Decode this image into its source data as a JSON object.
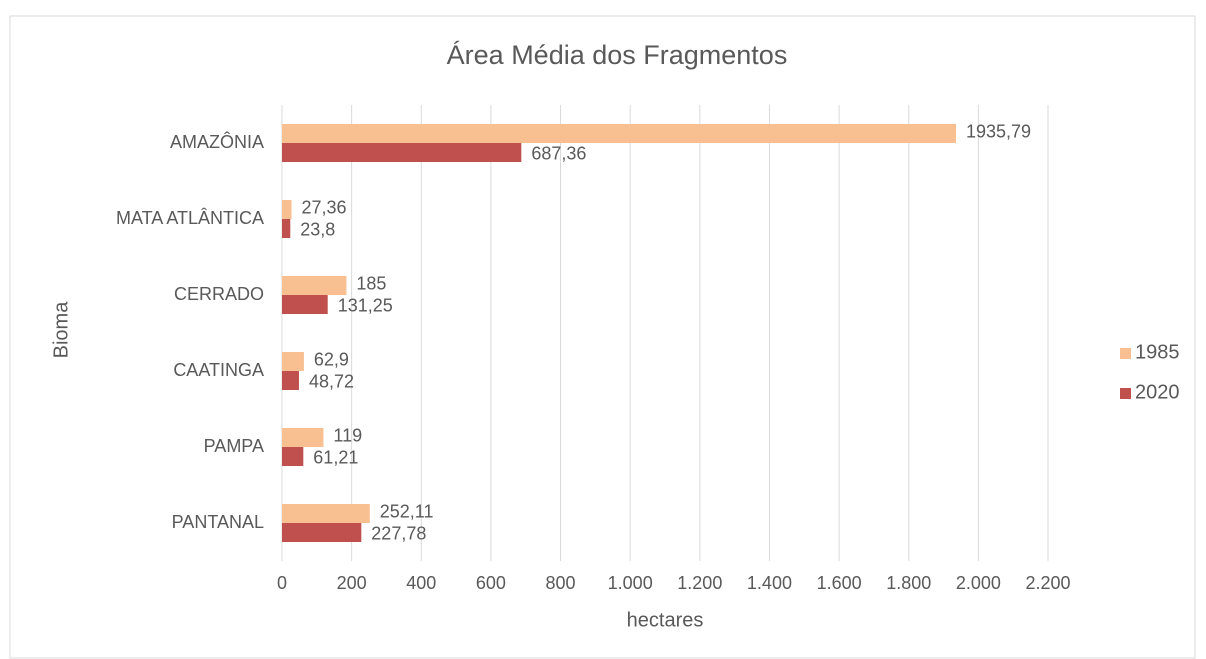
{
  "chart_data": {
    "type": "hbar",
    "title": "Área Média dos Fragmentos",
    "xlabel": "hectares",
    "ylabel": "Bioma",
    "categories": [
      "AMAZÔNIA",
      "MATA ATLÂNTICA",
      "CERRADO",
      "CAATINGA",
      "PAMPA",
      "PANTANAL"
    ],
    "series": [
      {
        "name": "1985",
        "color": "#f8bf90",
        "values": [
          1935.79,
          27.36,
          185,
          62.9,
          119,
          252.11
        ],
        "value_labels": [
          "1935,79",
          "27,36",
          "185",
          "62,9",
          "119",
          "252,11"
        ]
      },
      {
        "name": "2020",
        "color": "#c0504d",
        "values": [
          687.36,
          23.8,
          131.25,
          48.72,
          61.21,
          227.78
        ],
        "value_labels": [
          "687,36",
          "23,8",
          "131,25",
          "48,72",
          "61,21",
          "227,78"
        ]
      }
    ],
    "xlim": [
      0,
      2200
    ],
    "xticks": [
      0,
      200,
      400,
      600,
      800,
      {
        "value": 1000,
        "label": "1.000"
      },
      {
        "value": 1200,
        "label": "1.200"
      },
      {
        "value": 1400,
        "label": "1.400"
      },
      {
        "value": 1600,
        "label": "1.600"
      },
      {
        "value": 1800,
        "label": "1.800"
      },
      {
        "value": 2000,
        "label": "2.000"
      },
      {
        "value": 2200,
        "label": "2.200"
      }
    ],
    "grid": true,
    "legend": "right"
  }
}
